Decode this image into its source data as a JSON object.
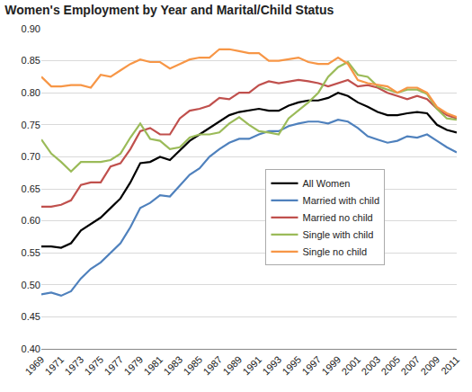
{
  "chart_data": {
    "type": "line",
    "title": "Women's Employment by Year and Marital/Child Status",
    "x": [
      1969,
      1970,
      1971,
      1972,
      1973,
      1974,
      1975,
      1976,
      1977,
      1978,
      1979,
      1980,
      1981,
      1982,
      1983,
      1984,
      1985,
      1986,
      1987,
      1988,
      1989,
      1990,
      1991,
      1992,
      1993,
      1994,
      1995,
      1996,
      1997,
      1998,
      1999,
      2000,
      2001,
      2002,
      2003,
      2004,
      2005,
      2006,
      2007,
      2008,
      2009,
      2010,
      2011
    ],
    "series": [
      {
        "name": "All Women",
        "color": "#000000",
        "values": [
          0.56,
          0.56,
          0.558,
          0.565,
          0.585,
          0.595,
          0.605,
          0.62,
          0.635,
          0.66,
          0.69,
          0.692,
          0.7,
          0.695,
          0.71,
          0.725,
          0.735,
          0.745,
          0.755,
          0.765,
          0.77,
          0.772,
          0.775,
          0.772,
          0.772,
          0.78,
          0.785,
          0.788,
          0.788,
          0.792,
          0.8,
          0.795,
          0.785,
          0.778,
          0.77,
          0.765,
          0.765,
          0.768,
          0.77,
          0.768,
          0.75,
          0.742,
          0.738
        ]
      },
      {
        "name": "Married with child",
        "color": "#4f81bd",
        "values": [
          0.485,
          0.488,
          0.483,
          0.49,
          0.51,
          0.525,
          0.535,
          0.55,
          0.565,
          0.59,
          0.62,
          0.628,
          0.64,
          0.638,
          0.655,
          0.672,
          0.682,
          0.7,
          0.712,
          0.722,
          0.728,
          0.728,
          0.735,
          0.74,
          0.74,
          0.748,
          0.752,
          0.755,
          0.755,
          0.752,
          0.758,
          0.755,
          0.745,
          0.732,
          0.727,
          0.722,
          0.725,
          0.732,
          0.73,
          0.735,
          0.725,
          0.715,
          0.707
        ]
      },
      {
        "name": "Married no child",
        "color": "#c0504d",
        "values": [
          0.622,
          0.622,
          0.625,
          0.632,
          0.656,
          0.66,
          0.66,
          0.685,
          0.69,
          0.712,
          0.74,
          0.745,
          0.735,
          0.735,
          0.76,
          0.772,
          0.775,
          0.78,
          0.792,
          0.79,
          0.8,
          0.8,
          0.812,
          0.818,
          0.815,
          0.818,
          0.82,
          0.818,
          0.815,
          0.81,
          0.815,
          0.82,
          0.81,
          0.812,
          0.808,
          0.8,
          0.795,
          0.79,
          0.795,
          0.79,
          0.775,
          0.765,
          0.76
        ]
      },
      {
        "name": "Single with child",
        "color": "#9bbb59",
        "values": [
          0.727,
          0.705,
          0.692,
          0.677,
          0.692,
          0.692,
          0.692,
          0.695,
          0.705,
          0.73,
          0.752,
          0.728,
          0.725,
          0.712,
          0.715,
          0.73,
          0.735,
          0.735,
          0.738,
          0.752,
          0.762,
          0.75,
          0.74,
          0.738,
          0.735,
          0.76,
          0.772,
          0.785,
          0.8,
          0.825,
          0.84,
          0.848,
          0.828,
          0.825,
          0.81,
          0.805,
          0.8,
          0.805,
          0.805,
          0.798,
          0.775,
          0.76,
          0.758
        ]
      },
      {
        "name": "Single no child",
        "color": "#f79646",
        "values": [
          0.825,
          0.81,
          0.81,
          0.812,
          0.812,
          0.808,
          0.828,
          0.825,
          0.835,
          0.845,
          0.852,
          0.848,
          0.848,
          0.838,
          0.845,
          0.852,
          0.855,
          0.855,
          0.868,
          0.868,
          0.865,
          0.862,
          0.862,
          0.85,
          0.85,
          0.852,
          0.855,
          0.848,
          0.845,
          0.845,
          0.855,
          0.845,
          0.82,
          0.815,
          0.812,
          0.81,
          0.8,
          0.808,
          0.808,
          0.8,
          0.778,
          0.768,
          0.762
        ]
      }
    ],
    "xlim": [
      1969,
      2011
    ],
    "xticks": [
      1969,
      1971,
      1973,
      1975,
      1977,
      1979,
      1981,
      1983,
      1985,
      1987,
      1989,
      1991,
      1993,
      1995,
      1997,
      1999,
      2001,
      2003,
      2005,
      2007,
      2009,
      2011
    ],
    "ylim": [
      0.4,
      0.9
    ],
    "yticks": [
      {
        "value": 0.4,
        "label": "0.40"
      },
      0.45,
      {
        "value": 0.5,
        "label": "0.50"
      },
      0.55,
      {
        "value": 0.6,
        "label": "0.60"
      },
      0.65,
      {
        "value": 0.7,
        "label": "0.70"
      },
      0.75,
      {
        "value": 0.8,
        "label": "0.80"
      },
      0.85,
      {
        "value": 0.9,
        "label": "0.90"
      }
    ],
    "grid": true,
    "legend": "right"
  }
}
